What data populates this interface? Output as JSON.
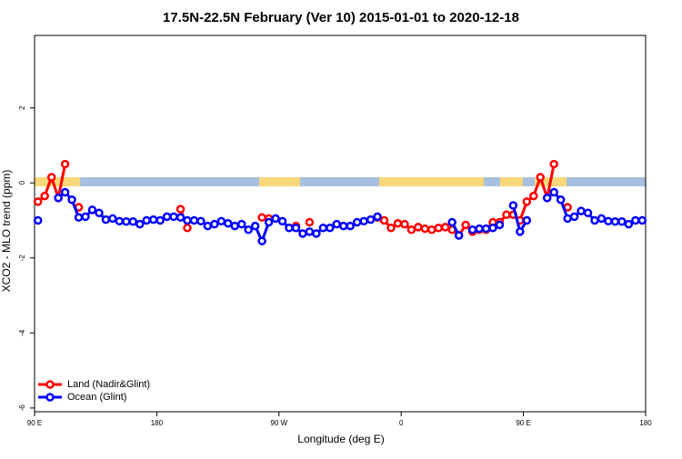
{
  "chart_data": {
    "type": "line",
    "title": "17.5N-22.5N February (Ver 10)   2015-01-01 to 2020-12-18",
    "x_label": "Longitude (deg E)",
    "y_label": "XCO2 - MLO trend (ppm)",
    "x": [
      92.5,
      97.5,
      102.5,
      107.5,
      112.5,
      117.5,
      122.5,
      127.5,
      132.5,
      137.5,
      142.5,
      147.5,
      152.5,
      157.5,
      162.5,
      167.5,
      172.5,
      177.5,
      182.5,
      187.5,
      192.5,
      197.5,
      202.5,
      207.5,
      212.5,
      217.5,
      222.5,
      227.5,
      232.5,
      237.5,
      242.5,
      247.5,
      252.5,
      257.5,
      262.5,
      267.5,
      272.5,
      277.5,
      282.5,
      287.5,
      292.5,
      297.5,
      302.5,
      307.5,
      312.5,
      317.5,
      322.5,
      327.5,
      332.5,
      337.5,
      342.5,
      347.5,
      352.5,
      357.5,
      362.5,
      367.5,
      372.5,
      377.5,
      382.5,
      387.5,
      392.5,
      397.5,
      402.5,
      407.5,
      412.5,
      417.5,
      422.5,
      427.5,
      432.5,
      437.5,
      442.5,
      447.5,
      452.5,
      457.5,
      462.5,
      467.5,
      472.5,
      477.5,
      482.5,
      487.5,
      492.5,
      497.5,
      502.5,
      507.5,
      512.5,
      517.5,
      522.5,
      527.5,
      532.5,
      537.5
    ],
    "series": [
      {
        "name": "Land (Nadir&Glint)",
        "color": "#ff0000",
        "values": [
          -0.5,
          -0.35,
          0.15,
          -0.4,
          0.5,
          null,
          -0.65,
          null,
          null,
          null,
          null,
          null,
          null,
          null,
          null,
          null,
          null,
          null,
          null,
          null,
          null,
          -0.7,
          -1.2,
          null,
          null,
          null,
          null,
          null,
          null,
          null,
          null,
          null,
          null,
          -0.92,
          -0.95,
          null,
          null,
          null,
          -1.15,
          null,
          -1.05,
          null,
          null,
          null,
          null,
          null,
          null,
          null,
          null,
          null,
          -0.92,
          -1.0,
          -1.2,
          -1.08,
          -1.1,
          -1.25,
          -1.18,
          -1.22,
          -1.25,
          -1.2,
          -1.18,
          -1.25,
          -1.4,
          -1.12,
          -1.3,
          -1.25,
          -1.25,
          -1.05,
          -1.05,
          -0.85,
          -0.85,
          -1.0,
          -0.5,
          -0.35,
          0.15,
          -0.4,
          0.5,
          null,
          -0.65,
          null,
          null,
          null,
          null,
          null,
          null,
          null,
          null,
          null,
          null,
          null
        ]
      },
      {
        "name": "Ocean (Glint)",
        "color": "#0000ff",
        "values": [
          -1.0,
          null,
          null,
          -0.4,
          -0.25,
          -0.45,
          -0.92,
          -0.9,
          -0.72,
          -0.8,
          -0.98,
          -0.95,
          -1.02,
          -1.03,
          -1.03,
          -1.1,
          -1.0,
          -0.98,
          -1.0,
          -0.9,
          -0.9,
          -0.92,
          -1.0,
          -1.0,
          -1.02,
          -1.15,
          -1.1,
          -1.02,
          -1.08,
          -1.15,
          -1.1,
          -1.25,
          -1.15,
          -1.55,
          -1.05,
          -0.95,
          -1.02,
          -1.2,
          -1.2,
          -1.35,
          -1.3,
          -1.35,
          -1.2,
          -1.2,
          -1.1,
          -1.15,
          -1.15,
          -1.05,
          -1.02,
          -0.98,
          -0.9,
          null,
          null,
          null,
          null,
          null,
          null,
          null,
          null,
          null,
          null,
          -1.05,
          -1.4,
          null,
          -1.25,
          -1.22,
          -1.22,
          -1.2,
          -1.12,
          null,
          -0.6,
          -1.3,
          -1.0,
          null,
          null,
          -0.4,
          -0.25,
          -0.45,
          -0.95,
          -0.9,
          -0.75,
          -0.8,
          -1.0,
          -0.95,
          -1.02,
          -1.03,
          -1.03,
          -1.1,
          -1.0,
          -1.0
        ]
      }
    ],
    "xlim": [
      90,
      540
    ],
    "xticks": [
      {
        "value": 90,
        "label": "90 E"
      },
      {
        "value": 180,
        "label": "180"
      },
      {
        "value": 270,
        "label": "90 W"
      },
      {
        "value": 360,
        "label": "0"
      },
      {
        "value": 450,
        "label": "90 E"
      },
      {
        "value": 540,
        "label": "180"
      }
    ],
    "ylim": [
      -6.1,
      3.93
    ],
    "yticks": [
      2,
      0,
      -2,
      -4,
      -6
    ],
    "legend": "bottom-left"
  }
}
